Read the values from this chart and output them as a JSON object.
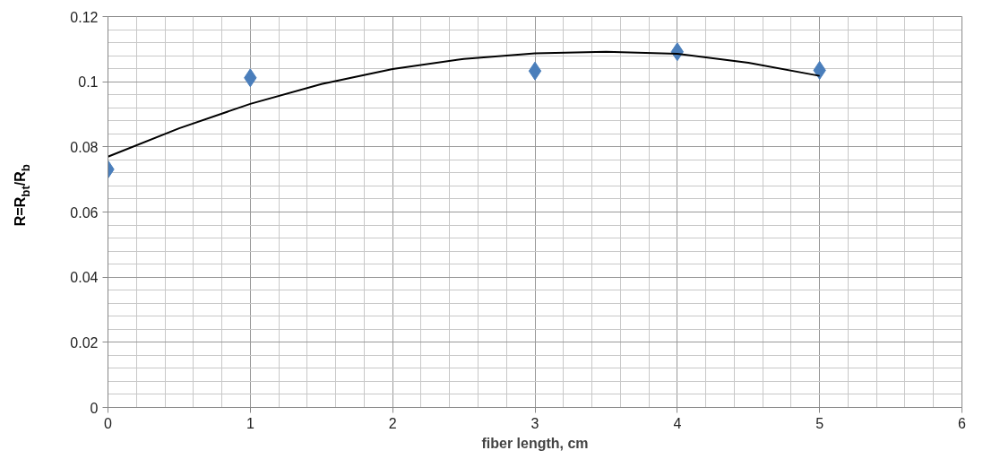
{
  "chart_data": {
    "type": "scatter",
    "xlabel": "fiber length, cm",
    "ylabel": "R=R$_{bt}$/R$_{b}$",
    "xlim": [
      0,
      6
    ],
    "xticks": [
      0,
      1,
      2,
      3,
      4,
      5,
      6
    ],
    "ylim": [
      0,
      0.12
    ],
    "yticks": [
      0,
      0.02,
      0.04,
      0.06,
      0.08,
      0.1,
      0.12
    ],
    "grid": true,
    "series": [
      {
        "marker": "diamond",
        "color": "#4a7ebb",
        "x": [
          0,
          1,
          3,
          4,
          5
        ],
        "values": [
          0.0731,
          0.1012,
          0.1033,
          0.1092,
          0.1035
        ]
      },
      {
        "type": "line",
        "marker": "none",
        "color": "#000000",
        "x": [
          0,
          0.5,
          1,
          1.5,
          2,
          2.5,
          3,
          3.5,
          4,
          4.5,
          5
        ],
        "values": [
          0.077,
          0.0857,
          0.0932,
          0.0993,
          0.1039,
          0.107,
          0.1087,
          0.1092,
          0.1086,
          0.1058,
          0.1018
        ]
      }
    ]
  }
}
